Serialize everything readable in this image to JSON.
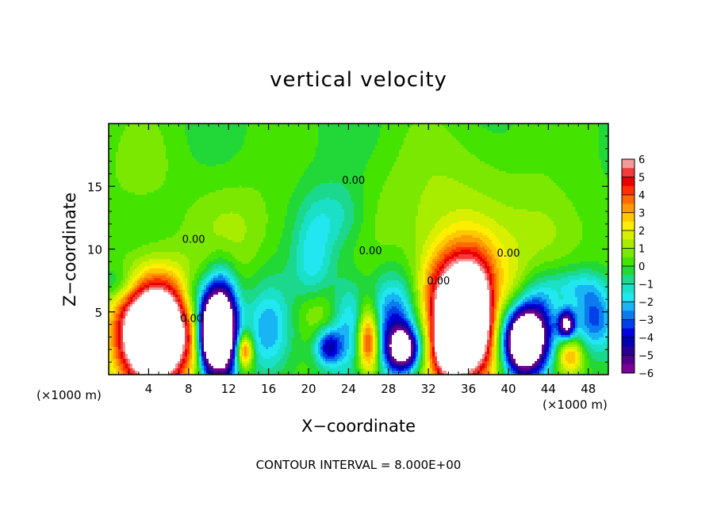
{
  "chart_data": {
    "type": "heatmap",
    "title": "vertical velocity",
    "xlabel": "X−coordinate",
    "ylabel": "Z−coordinate",
    "x_unit": "(×1000 m)",
    "xlim": [
      0,
      50
    ],
    "ylim": [
      0,
      20
    ],
    "x_ticks": [
      4,
      8,
      12,
      16,
      20,
      24,
      28,
      32,
      36,
      40,
      44,
      48
    ],
    "y_ticks": [
      5,
      10,
      15
    ],
    "colorbar": {
      "range": [
        -6,
        6
      ],
      "ticks": [
        "6",
        "5",
        "4",
        "3",
        "2",
        "1",
        "0",
        "−1",
        "−2",
        "−3",
        "−4",
        "−5",
        "−6"
      ],
      "levels": [
        {
          "from": 5.5,
          "to": 6.0,
          "color": "#f29a9a"
        },
        {
          "from": 5.0,
          "to": 5.5,
          "color": "#f03c3c"
        },
        {
          "from": 4.5,
          "to": 5.0,
          "color": "#e80000"
        },
        {
          "from": 4.0,
          "to": 4.5,
          "color": "#ff3000"
        },
        {
          "from": 3.5,
          "to": 4.0,
          "color": "#ff6a00"
        },
        {
          "from": 3.0,
          "to": 3.5,
          "color": "#ff9a00"
        },
        {
          "from": 2.5,
          "to": 3.0,
          "color": "#ffc800"
        },
        {
          "from": 2.0,
          "to": 2.5,
          "color": "#ffee00"
        },
        {
          "from": 1.5,
          "to": 2.0,
          "color": "#d8f000"
        },
        {
          "from": 1.0,
          "to": 1.5,
          "color": "#a8ec00"
        },
        {
          "from": 0.5,
          "to": 1.0,
          "color": "#7ae800"
        },
        {
          "from": 0.0,
          "to": 0.5,
          "color": "#44e400"
        },
        {
          "from": -0.5,
          "to": 0.0,
          "color": "#22d838"
        },
        {
          "from": -1.0,
          "to": -0.5,
          "color": "#1cd88c"
        },
        {
          "from": -1.5,
          "to": -1.0,
          "color": "#1ae0c8"
        },
        {
          "from": -2.0,
          "to": -1.5,
          "color": "#22e6f0"
        },
        {
          "from": -2.5,
          "to": -2.0,
          "color": "#18b4f4"
        },
        {
          "from": -3.0,
          "to": -2.5,
          "color": "#0a7cf0"
        },
        {
          "from": -3.5,
          "to": -3.0,
          "color": "#0040e8"
        },
        {
          "from": -4.0,
          "to": -3.5,
          "color": "#0000e0"
        },
        {
          "from": -4.5,
          "to": -4.0,
          "color": "#0000b0"
        },
        {
          "from": -5.0,
          "to": -4.5,
          "color": "#280096"
        },
        {
          "from": -5.5,
          "to": -5.0,
          "color": "#4e008c"
        },
        {
          "from": -6.0,
          "to": -5.5,
          "color": "#7a0096"
        }
      ]
    },
    "contour_labels": [
      {
        "text": "0.00",
        "x": 24.5,
        "z": 15.2
      },
      {
        "text": "0.00",
        "x": 8.5,
        "z": 10.5
      },
      {
        "text": "0.00",
        "x": 8.3,
        "z": 4.2
      },
      {
        "text": "0.00",
        "x": 26.2,
        "z": 9.6
      },
      {
        "text": "0.00",
        "x": 33.0,
        "z": 7.2
      },
      {
        "text": "0.00",
        "x": 40.0,
        "z": 9.4
      }
    ],
    "features": [
      {
        "kind": "updraft",
        "x": 4.6,
        "z": 3.3,
        "sx": 2.6,
        "sz": 3.0,
        "amp": 12.0
      },
      {
        "kind": "updraft",
        "x": 35.6,
        "z": 4.6,
        "sx": 2.8,
        "sz": 3.6,
        "amp": 12.0
      },
      {
        "kind": "updraft",
        "x": 26.0,
        "z": 2.7,
        "sx": 0.8,
        "sz": 1.9,
        "amp": 5.5
      },
      {
        "kind": "updraft",
        "x": 13.6,
        "z": 1.9,
        "sx": 0.6,
        "sz": 1.0,
        "amp": 4.8
      },
      {
        "kind": "updraft",
        "x": 46.2,
        "z": 1.5,
        "sx": 0.9,
        "sz": 1.0,
        "amp": 3.0
      },
      {
        "kind": "updraft",
        "x": 34.0,
        "z": 2.0,
        "sx": 1.2,
        "sz": 1.5,
        "amp": 3.0
      },
      {
        "kind": "updraft",
        "x": 20.8,
        "z": 5.0,
        "sx": 1.5,
        "sz": 1.5,
        "amp": 1.5
      },
      {
        "kind": "updraft",
        "x": 44.0,
        "z": 11.0,
        "sx": 3.0,
        "sz": 2.5,
        "amp": 1.3
      },
      {
        "kind": "updraft",
        "x": 13.0,
        "z": 11.5,
        "sx": 3.5,
        "sz": 3.0,
        "amp": 1.0
      },
      {
        "kind": "updraft",
        "x": 30.0,
        "z": 12.0,
        "sx": 4.0,
        "sz": 3.0,
        "amp": 0.8
      },
      {
        "kind": "updraft",
        "x": 36.0,
        "z": 16.0,
        "sx": 5.0,
        "sz": 3.0,
        "amp": 0.7
      },
      {
        "kind": "updraft",
        "x": 3.0,
        "z": 16.0,
        "sx": 3.0,
        "sz": 3.0,
        "amp": 0.6
      },
      {
        "kind": "downdraft",
        "x": 11.2,
        "z": 3.6,
        "sx": 1.1,
        "sz": 2.6,
        "amp": -12.0
      },
      {
        "kind": "downdraft",
        "x": 41.3,
        "z": 2.7,
        "sx": 1.4,
        "sz": 1.9,
        "amp": -11.0
      },
      {
        "kind": "downdraft",
        "x": 29.5,
        "z": 2.0,
        "sx": 1.1,
        "sz": 1.2,
        "amp": -7.0
      },
      {
        "kind": "downdraft",
        "x": 45.8,
        "z": 4.0,
        "sx": 0.6,
        "sz": 0.8,
        "amp": -6.5
      },
      {
        "kind": "downdraft",
        "x": 9.8,
        "z": 3.2,
        "sx": 0.7,
        "sz": 2.0,
        "amp": -5.0
      },
      {
        "kind": "downdraft",
        "x": 28.8,
        "z": 4.0,
        "sx": 1.8,
        "sz": 2.6,
        "amp": -4.0
      },
      {
        "kind": "downdraft",
        "x": 22.0,
        "z": 2.2,
        "sx": 0.9,
        "sz": 1.0,
        "amp": -4.0
      },
      {
        "kind": "downdraft",
        "x": 43.2,
        "z": 3.5,
        "sx": 1.2,
        "sz": 2.3,
        "amp": -3.5
      },
      {
        "kind": "downdraft",
        "x": 48.6,
        "z": 4.5,
        "sx": 1.4,
        "sz": 1.8,
        "amp": -3.2
      },
      {
        "kind": "downdraft",
        "x": 16.0,
        "z": 3.5,
        "sx": 1.6,
        "sz": 2.5,
        "amp": -2.6
      },
      {
        "kind": "downdraft",
        "x": 24.0,
        "z": 4.0,
        "sx": 1.2,
        "sz": 2.5,
        "amp": -2.0
      },
      {
        "kind": "downdraft",
        "x": 38.8,
        "z": 5.0,
        "sx": 1.0,
        "sz": 2.5,
        "amp": -2.2
      },
      {
        "kind": "downdraft",
        "x": 8.5,
        "z": 6.0,
        "sx": 1.0,
        "sz": 1.5,
        "amp": -1.8
      },
      {
        "kind": "downdraft",
        "x": 20.5,
        "z": 9.0,
        "sx": 1.4,
        "sz": 3.0,
        "amp": -1.8
      },
      {
        "kind": "downdraft",
        "x": 23.0,
        "z": 12.5,
        "sx": 2.0,
        "sz": 2.0,
        "amp": -1.4
      },
      {
        "kind": "downdraft",
        "x": 1.0,
        "z": 7.2,
        "sx": 1.5,
        "sz": 1.0,
        "amp": -1.5
      },
      {
        "kind": "downdraft",
        "x": 46.5,
        "z": 7.0,
        "sx": 2.0,
        "sz": 1.0,
        "amp": -1.5
      },
      {
        "kind": "downdraft",
        "x": 32.0,
        "z": 3.0,
        "sx": 1.0,
        "sz": 2.0,
        "amp": -1.5
      }
    ]
  },
  "contour_interval_text": "CONTOUR INTERVAL = 8.000E+00"
}
